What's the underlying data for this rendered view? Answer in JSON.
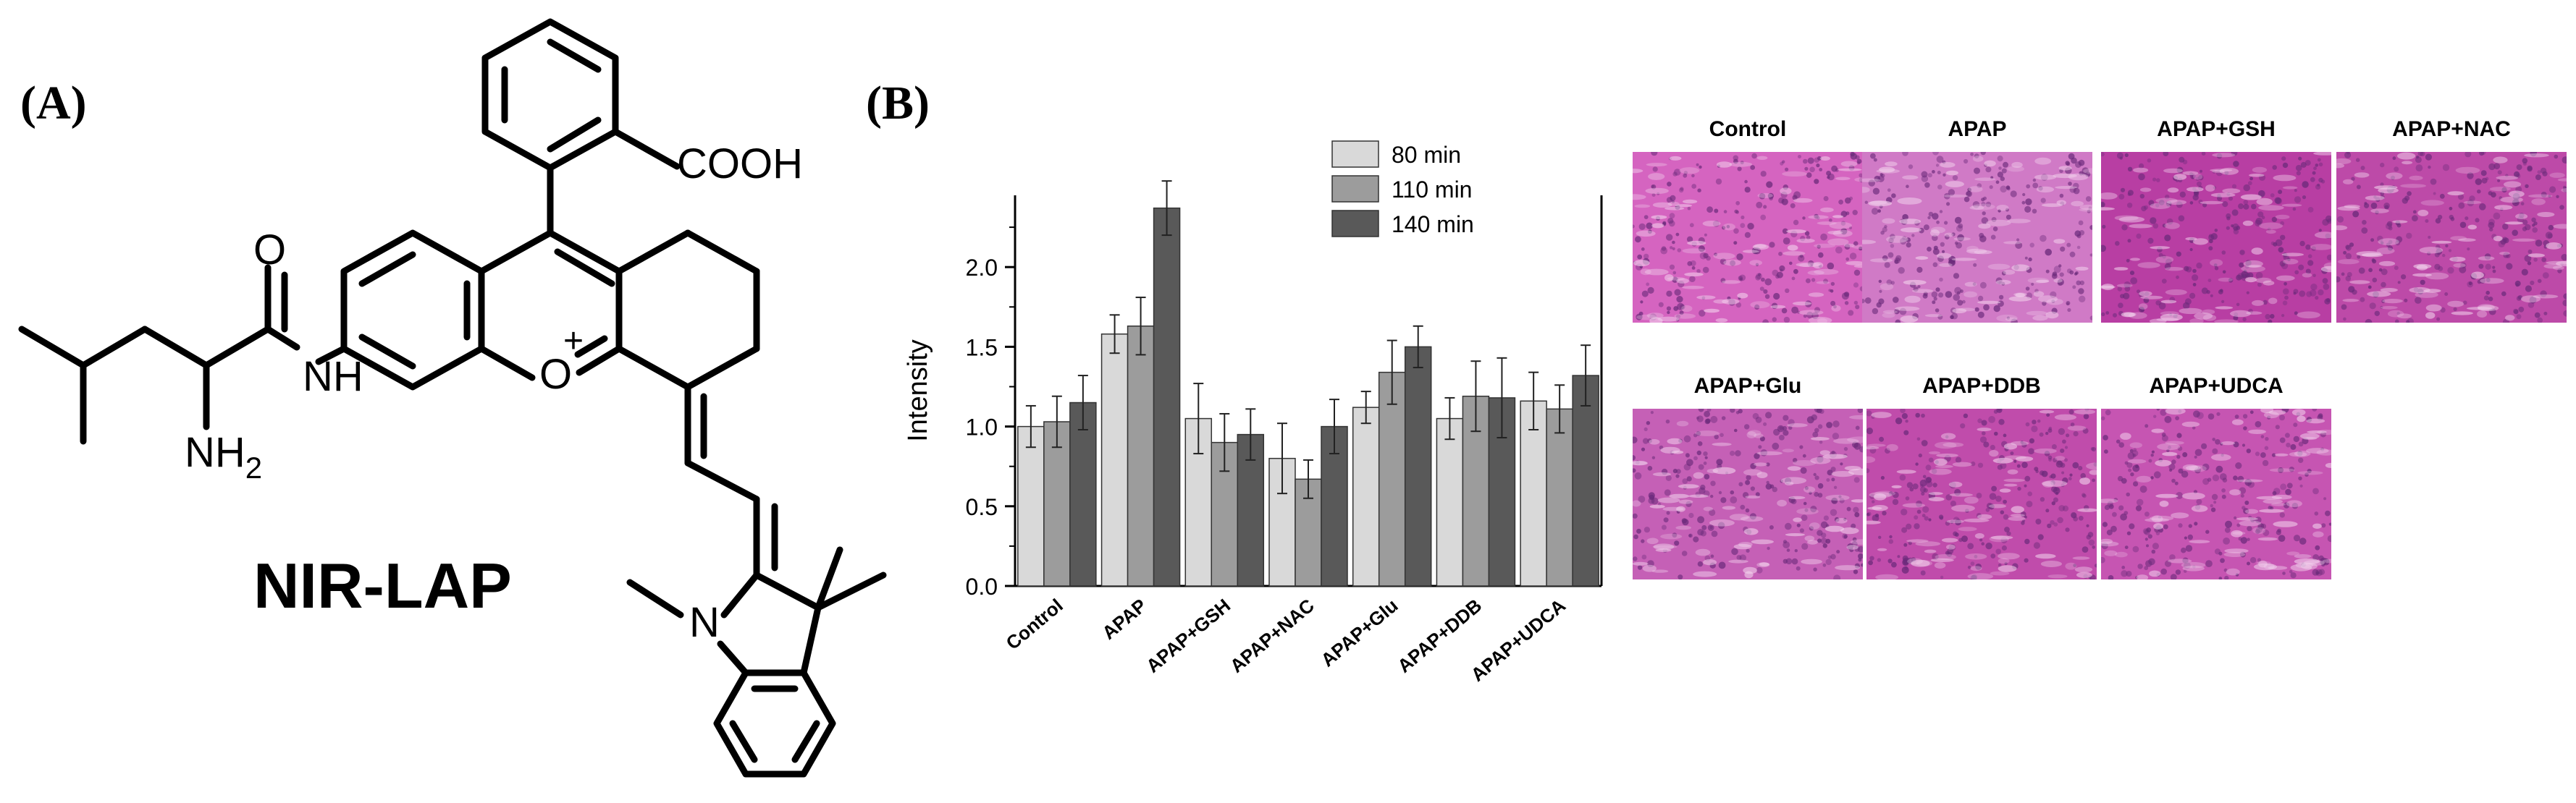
{
  "panel_a": {
    "label": "(A)",
    "compound_name": "NIR-LAP",
    "groups": {
      "acid": "COOH",
      "amine": "NH",
      "amine_sub": "2",
      "amide_n": "NH",
      "oxo": "O",
      "oxonium": "O",
      "charge": "+",
      "indole_n": "N"
    }
  },
  "panel_b": {
    "label": "(B)"
  },
  "chart_data": {
    "type": "bar",
    "ylabel": "Intensity",
    "xlabel": "",
    "ylim": [
      0,
      2.45
    ],
    "yticks": [
      "0.0",
      "0.5",
      "1.0",
      "1.5",
      "2.0"
    ],
    "categories": [
      "Control",
      "APAP",
      "APAP+GSH",
      "APAP+NAC",
      "APAP+Glu",
      "APAP+DDB",
      "APAP+UDCA"
    ],
    "series": [
      {
        "name": "80 min",
        "color": "#d9d9d9",
        "values": [
          1.0,
          1.58,
          1.05,
          0.8,
          1.12,
          1.05,
          1.16
        ],
        "errors": [
          0.13,
          0.12,
          0.22,
          0.22,
          0.1,
          0.13,
          0.18
        ]
      },
      {
        "name": "110 min",
        "color": "#9c9c9c",
        "values": [
          1.03,
          1.63,
          0.9,
          0.67,
          1.34,
          1.19,
          1.11
        ],
        "errors": [
          0.16,
          0.18,
          0.18,
          0.12,
          0.2,
          0.22,
          0.15
        ]
      },
      {
        "name": "140 min",
        "color": "#595959",
        "values": [
          1.15,
          2.37,
          0.95,
          1.0,
          1.5,
          1.18,
          1.32
        ],
        "errors": [
          0.17,
          0.17,
          0.16,
          0.17,
          0.13,
          0.25,
          0.19
        ]
      }
    ],
    "legend_position": "top-right"
  },
  "histology": {
    "titles": [
      "Control",
      "APAP",
      "APAP+GSH",
      "APAP+NAC",
      "APAP+Glu",
      "APAP+DDB",
      "APAP+UDCA"
    ],
    "tint": "#c04aa8"
  }
}
